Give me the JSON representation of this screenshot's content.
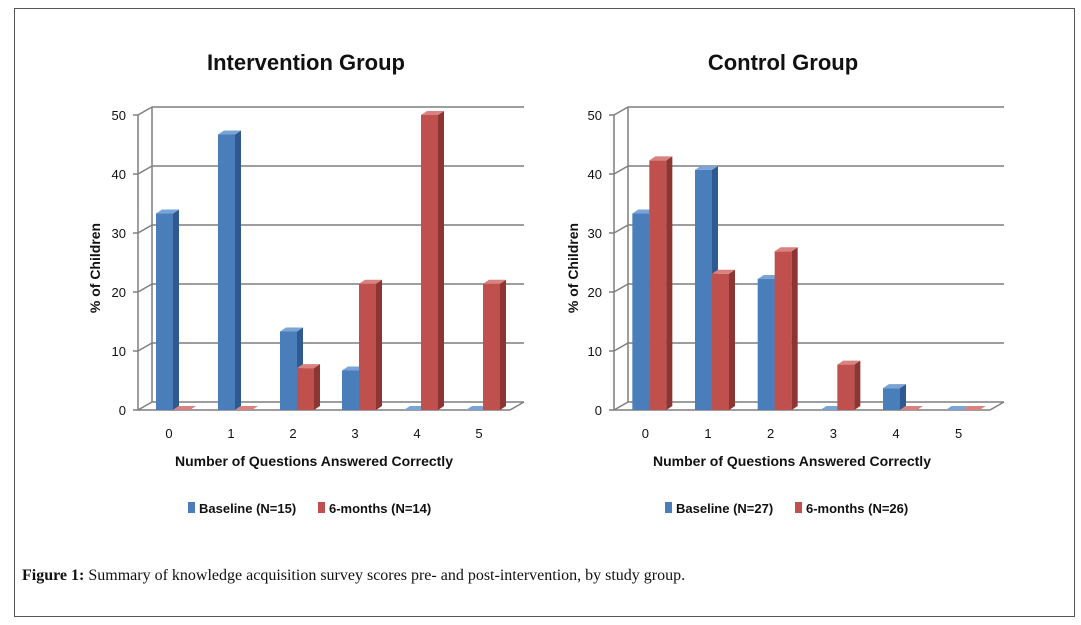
{
  "figure": {
    "caption_label": "Figure 1:",
    "caption_text": " Summary of knowledge acquisition survey scores pre- and post-intervention, by study group."
  },
  "colors": {
    "baseline": "#4a7ebb",
    "baseline_side": "#2f5a8f",
    "baseline_top": "#7aa3d6",
    "six_months": "#c0504d",
    "six_months_side": "#8c3532",
    "six_months_top": "#d9827f",
    "grid": "#7f7f7f"
  },
  "chart_data": [
    {
      "type": "bar",
      "title": "Intervention Group",
      "xlabel": "Number of Questions Answered Correctly",
      "ylabel": "% of Children",
      "categories": [
        "0",
        "1",
        "2",
        "3",
        "4",
        "5"
      ],
      "ylim": [
        0,
        50
      ],
      "yticks": [
        "0",
        "10",
        "20",
        "30",
        "40",
        "50"
      ],
      "grid": true,
      "legend_position": "bottom",
      "series": [
        {
          "name": "Baseline (N=15)",
          "values": [
            33.3,
            46.7,
            13.3,
            6.7,
            0,
            0
          ]
        },
        {
          "name": "6-months (N=14)",
          "values": [
            0,
            0,
            7.1,
            21.4,
            50.0,
            21.4
          ]
        }
      ]
    },
    {
      "type": "bar",
      "title": "Control Group",
      "xlabel": "Number of Questions Answered Correctly",
      "ylabel": "% of Children",
      "categories": [
        "0",
        "1",
        "2",
        "3",
        "4",
        "5"
      ],
      "ylim": [
        0,
        50
      ],
      "yticks": [
        "0",
        "10",
        "20",
        "30",
        "40",
        "50"
      ],
      "grid": true,
      "legend_position": "bottom",
      "series": [
        {
          "name": "Baseline (N=27)",
          "values": [
            33.3,
            40.7,
            22.2,
            0,
            3.7,
            0
          ]
        },
        {
          "name": "6-months (N=26)",
          "values": [
            42.3,
            23.1,
            26.9,
            7.7,
            0,
            0
          ]
        }
      ]
    }
  ]
}
